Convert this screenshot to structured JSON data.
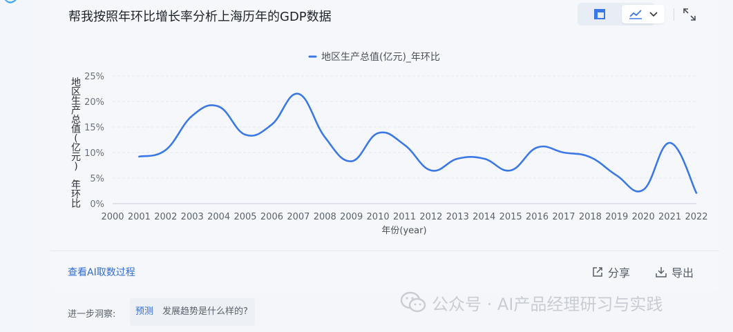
{
  "colors": {
    "accent": "#3b78e7",
    "link": "#2f6bd8",
    "grid": "#e4e7ed"
  },
  "card": {
    "title": "帮我按照年环比增长率分析上海历年的GDP数据",
    "view_toggle": {
      "table_icon": "table-icon",
      "line_icon": "line-chart-icon",
      "dropdown_icon": "chevron-down-icon",
      "active": "line"
    },
    "expand_icon": "expand-icon"
  },
  "chart_data": {
    "type": "line",
    "title": "",
    "legend": {
      "position": "top-center",
      "label": "地区生产总值(亿元)_年环比"
    },
    "ylabel": "地区生产总值(亿元)_年环比",
    "xlabel": "年份(year)",
    "ylim": [
      0,
      25
    ],
    "yticks": [
      "0%",
      "5%",
      "10%",
      "15%",
      "20%",
      "25%"
    ],
    "grid": "horizontal-dashed",
    "categories": [
      "2000",
      "2001",
      "2002",
      "2003",
      "2004",
      "2005",
      "2006",
      "2007",
      "2008",
      "2009",
      "2010",
      "2011",
      "2012",
      "2013",
      "2014",
      "2015",
      "2016",
      "2017",
      "2018",
      "2019",
      "2020",
      "2021",
      "2022"
    ],
    "series": [
      {
        "name": "地区生产总值(亿元)_年环比",
        "values": [
          null,
          9.2,
          10.5,
          17.2,
          19.0,
          13.5,
          15.5,
          21.5,
          13.0,
          8.3,
          13.8,
          11.5,
          6.5,
          8.8,
          8.8,
          6.5,
          11.0,
          10.0,
          9.1,
          5.5,
          2.7,
          11.9,
          2.1
        ]
      }
    ]
  },
  "footer": {
    "ai_process_link": "查看AI取数过程",
    "share_label": "分享",
    "export_label": "导出"
  },
  "further": {
    "label": "进一步洞察:",
    "chips": [
      "预测",
      "发展趋势是什么样的?"
    ]
  },
  "watermark": {
    "text": "公众号 · AI产品经理研习与实践"
  }
}
